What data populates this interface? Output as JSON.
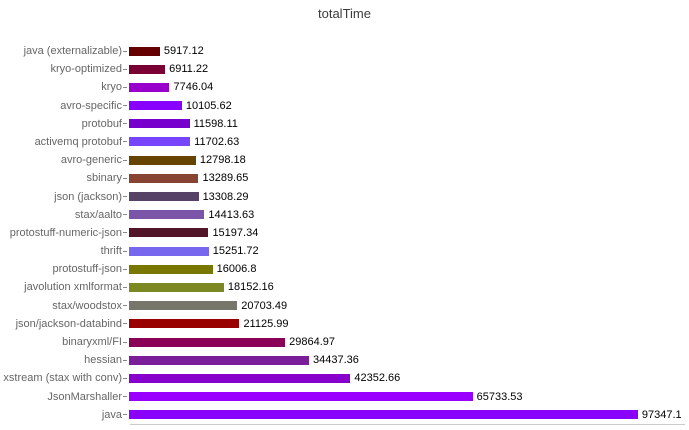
{
  "title": "totalTime",
  "chart_data": {
    "type": "bar",
    "orientation": "horizontal",
    "title": "totalTime",
    "xlabel": "",
    "ylabel": "",
    "grid": false,
    "legend": "none",
    "background_color": "#ffffff",
    "xlim": [
      0,
      106000
    ],
    "categories": [
      "java (externalizable)",
      "kryo-optimized",
      "kryo",
      "avro-specific",
      "protobuf",
      "activemq protobuf",
      "avro-generic",
      "sbinary",
      "json (jackson)",
      "stax/aalto",
      "protostuff-numeric-json",
      "thrift",
      "protostuff-json",
      "javolution xmlformat",
      "stax/woodstox",
      "json/jackson-databind",
      "binaryxml/FI",
      "hessian",
      "xstream (stax with conv)",
      "JsonMarshaller",
      "java"
    ],
    "values": [
      5917.12,
      6911.22,
      7746.04,
      10105.62,
      11598.11,
      11702.63,
      12798.18,
      13289.65,
      13308.29,
      14413.63,
      15197.34,
      15251.72,
      16006.8,
      18152.16,
      20703.49,
      21125.99,
      29864.97,
      34437.36,
      42352.66,
      65733.53,
      97347.1
    ],
    "value_labels": [
      "5917.12",
      "6911.22",
      "7746.04",
      "10105.62",
      "11598.11",
      "11702.63",
      "12798.18",
      "13289.65",
      "13308.29",
      "14413.63",
      "15197.34",
      "15251.72",
      "16006.8",
      "18152.16",
      "20703.49",
      "21125.99",
      "29864.97",
      "34437.36",
      "42352.66",
      "65733.53",
      "97347.1"
    ],
    "bar_colors": [
      "#660000",
      "#7a0033",
      "#9900cc",
      "#8800ff",
      "#7700cc",
      "#7744ff",
      "#664400",
      "#884433",
      "#564266",
      "#7a55a8",
      "#521428",
      "#7766ee",
      "#787800",
      "#7c8822",
      "#76766a",
      "#990000",
      "#8a0057",
      "#7a1f99",
      "#8800cc",
      "#9900ff",
      "#8802fc"
    ]
  }
}
